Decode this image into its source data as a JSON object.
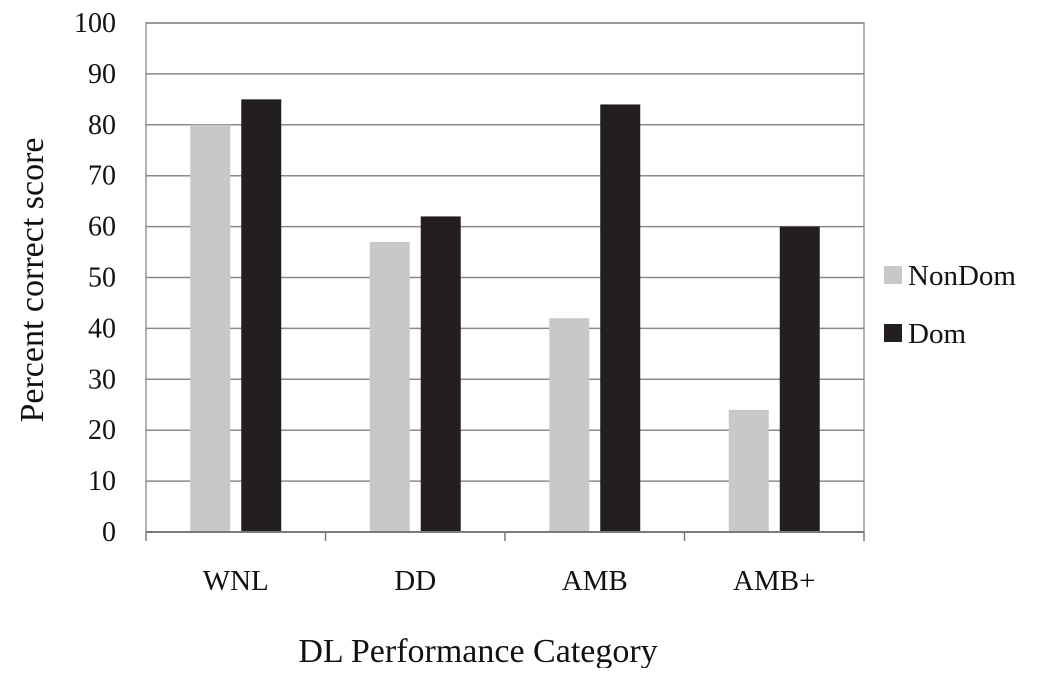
{
  "chart_data": {
    "type": "bar",
    "title": "",
    "xlabel": "DL Performance Category",
    "ylabel": "Percent correct score",
    "categories": [
      "WNL",
      "DD",
      "AMB",
      "AMB+"
    ],
    "series": [
      {
        "name": "NonDom",
        "color": "#c8c8c8",
        "values": [
          80,
          57,
          42,
          24
        ]
      },
      {
        "name": "Dom",
        "color": "#231f20",
        "values": [
          85,
          62,
          84,
          60
        ]
      }
    ],
    "ylim": [
      0,
      100
    ],
    "yticks": [
      "0",
      "10",
      "20",
      "30",
      "40",
      "50",
      "60",
      "70",
      "80",
      "90",
      "100"
    ],
    "grid": true,
    "legend_position": "right"
  }
}
